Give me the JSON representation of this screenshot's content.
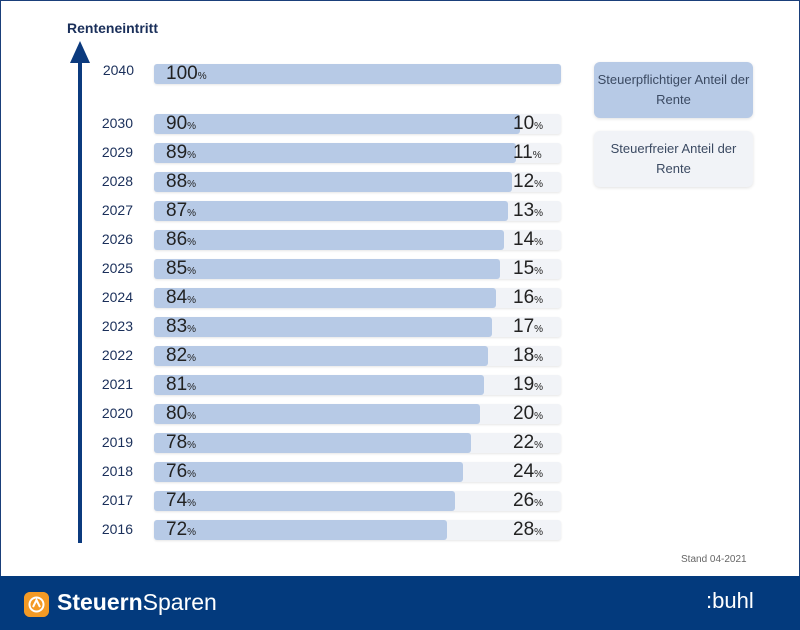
{
  "chart_data": {
    "type": "bar",
    "orientation": "horizontal",
    "stacked": true,
    "y_title": "Renteneintritt",
    "categories": [
      "2040",
      "2030",
      "2029",
      "2028",
      "2027",
      "2026",
      "2025",
      "2024",
      "2023",
      "2022",
      "2021",
      "2020",
      "2019",
      "2018",
      "2017",
      "2016"
    ],
    "series": [
      {
        "name": "Steuerpflichtiger Anteil der Rente",
        "values": [
          100,
          90,
          89,
          88,
          87,
          86,
          85,
          84,
          83,
          82,
          81,
          80,
          78,
          76,
          74,
          72
        ],
        "color": "#b7cae6"
      },
      {
        "name": "Steuerfreier Anteil der Rente",
        "values": [
          0,
          10,
          11,
          12,
          13,
          14,
          15,
          16,
          17,
          18,
          19,
          20,
          22,
          24,
          26,
          28
        ],
        "color": "#f1f3f7"
      }
    ],
    "unit": "%",
    "xlim": [
      0,
      100
    ],
    "legend": "right"
  },
  "legend": {
    "taxable_label": "Steuerpflichtiger Anteil der Rente",
    "free_label": "Steuerfreier Anteil der Rente"
  },
  "note": "Stand 04-2021",
  "footer": {
    "brand_bold": "Steuern",
    "brand_rest": "Sparen",
    "partner": ":buhl"
  },
  "colors": {
    "footer_bg": "#033a7d",
    "axis": "#0b3a7e",
    "taxable": "#b7cae6",
    "free": "#f1f3f7",
    "logo": "#f49a25"
  }
}
